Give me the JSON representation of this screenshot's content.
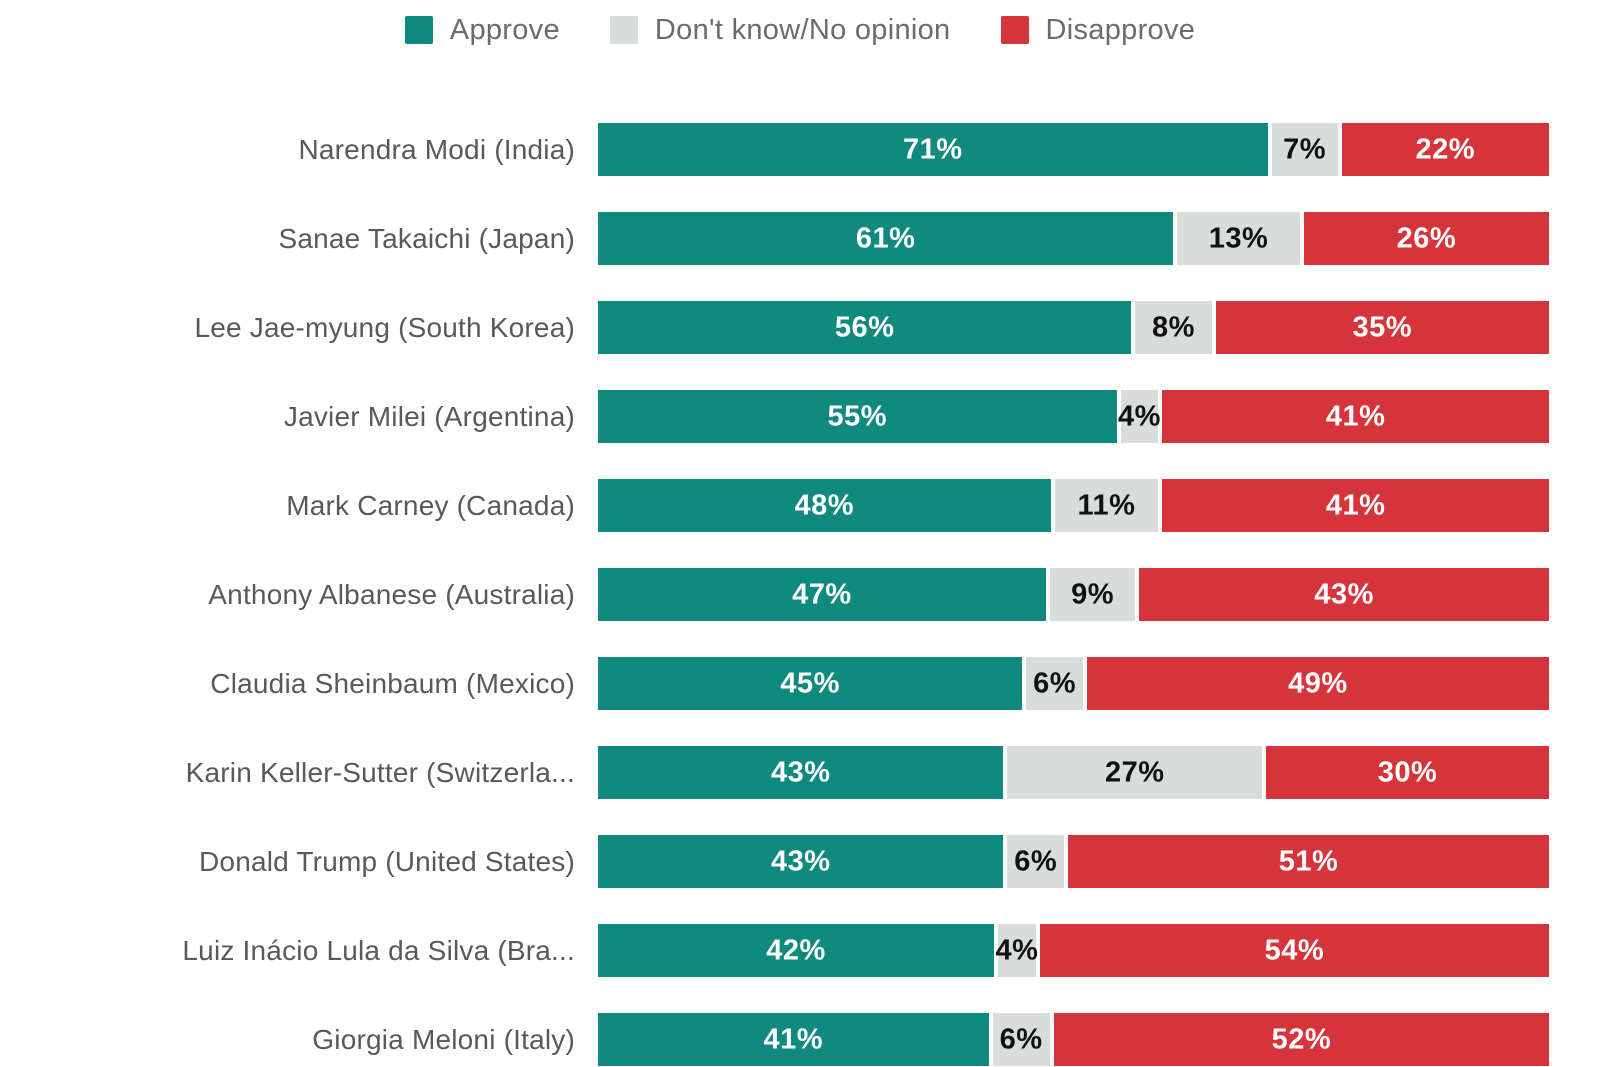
{
  "legend": {
    "items": [
      {
        "label": "Approve",
        "color": "#10897F"
      },
      {
        "label": "Don't know/No opinion",
        "color": "#D8DCDB"
      },
      {
        "label": "Disapprove",
        "color": "#D6343B"
      }
    ]
  },
  "chart_data": {
    "type": "bar",
    "orientation": "horizontal",
    "stacked": true,
    "unit": "%",
    "value_label_format": "N%",
    "legend_position": "top-center",
    "grid": false,
    "x_range": [
      0,
      100
    ],
    "categories": [
      "Narendra Modi (India)",
      "Sanae Takaichi (Japan)",
      "Lee Jae-myung (South Korea)",
      "Javier Milei (Argentina)",
      "Mark Carney (Canada)",
      "Anthony Albanese (Australia)",
      "Claudia Sheinbaum (Mexico)",
      "Karin Keller-Sutter (Switzerla...",
      "Donald Trump (United States)",
      "Luiz Inácio Lula da Silva (Bra...",
      "Giorgia Meloni (Italy)"
    ],
    "series": [
      {
        "name": "Approve",
        "color": "#10897F",
        "text_color": "#FFFFFF",
        "values": [
          71,
          61,
          56,
          55,
          48,
          47,
          45,
          43,
          43,
          42,
          41
        ]
      },
      {
        "name": "Don't know/No opinion",
        "color": "#D8DCDB",
        "text_color": "#111111",
        "values": [
          7,
          13,
          8,
          4,
          11,
          9,
          6,
          27,
          6,
          4,
          6
        ]
      },
      {
        "name": "Disapprove",
        "color": "#D6343B",
        "text_color": "#FFFFFF",
        "values": [
          22,
          26,
          35,
          41,
          41,
          43,
          49,
          30,
          51,
          54,
          52
        ]
      }
    ]
  }
}
